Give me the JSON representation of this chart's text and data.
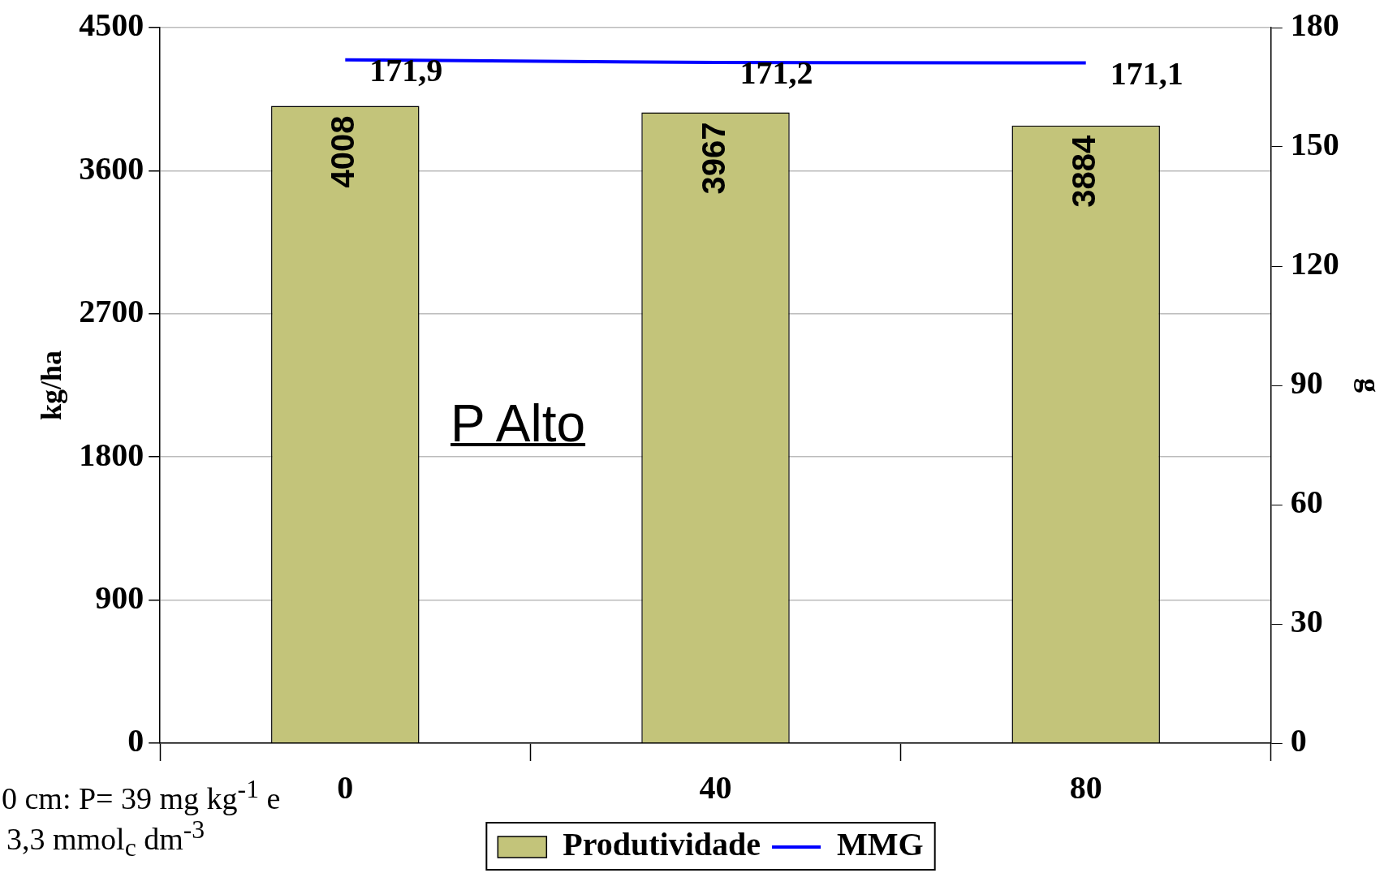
{
  "chart_data": {
    "type": "bar",
    "categories": [
      "0",
      "40",
      "80"
    ],
    "series": [
      {
        "name": "Produtividade",
        "color": "#c3c47a",
        "values": [
          4008,
          3967,
          3884
        ],
        "value_labels": [
          "4008",
          "3967",
          "3884"
        ]
      },
      {
        "name": "MMG",
        "type": "line",
        "axis": "y2",
        "color": "#0000ff",
        "values": [
          171.9,
          171.2,
          171.1
        ],
        "value_labels": [
          "171,9",
          "171,2",
          "171,1"
        ]
      }
    ],
    "ylabel": "kg/ha",
    "y2label": "g",
    "ylim": [
      0,
      4500
    ],
    "yticks": [
      0,
      900,
      1800,
      2700,
      3600,
      4500
    ],
    "y2lim": [
      0,
      180
    ],
    "y2ticks": [
      0,
      30,
      60,
      90,
      120,
      150,
      180
    ],
    "grid": "y",
    "legend": "bottom",
    "marker": "none",
    "line_style": "solid",
    "annotations": [
      "P Alto",
      "0 cm: P= 39 mg kg$^{-1}$ e",
      "3,3 mmol$_{c}$ dm$^{-3}$"
    ]
  }
}
